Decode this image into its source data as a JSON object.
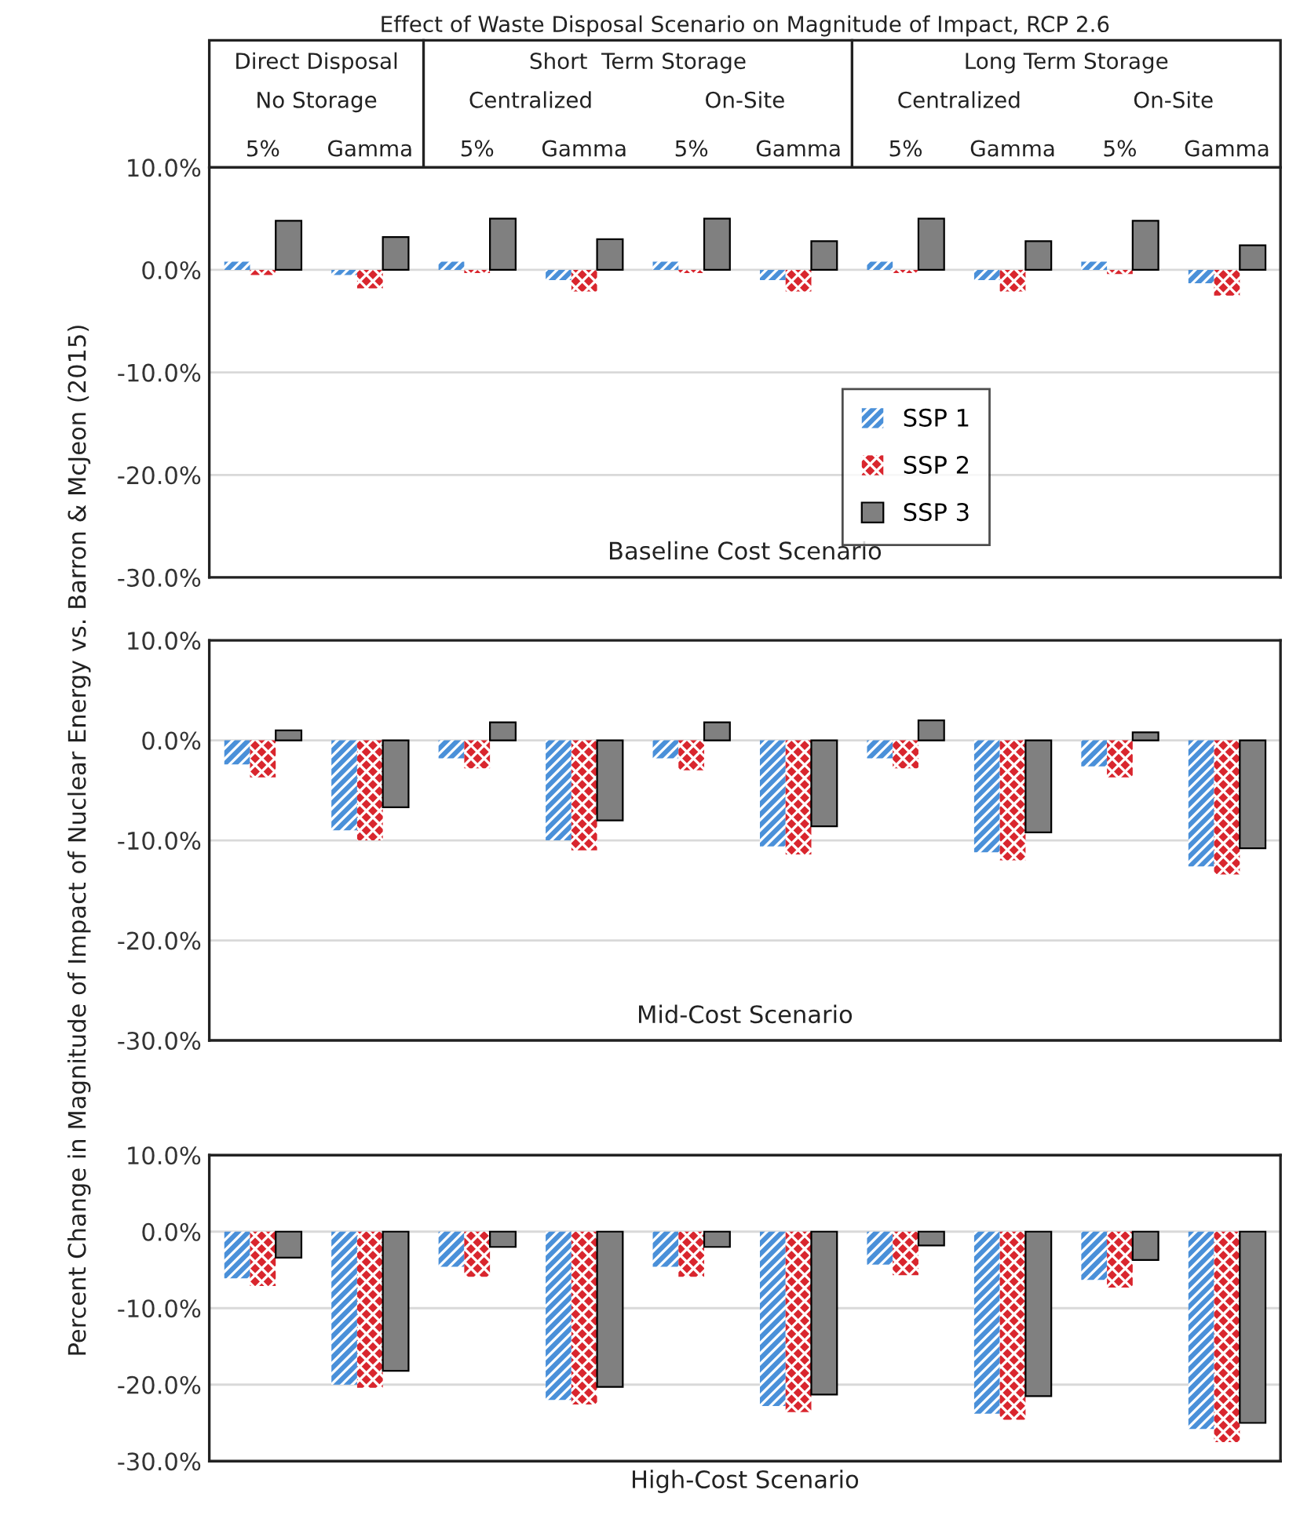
{
  "chart_data": [
    {
      "type": "bar",
      "title": "Effect of Waste Disposal Scenario on Magnitude of Impact, RCP 2.6",
      "categories": [
        "5%",
        "Gamma",
        "5%",
        "Gamma",
        "5%",
        "Gamma",
        "5%",
        "Gamma",
        "5%",
        "Gamma"
      ],
      "series": [
        {
          "name": "SSP 1",
          "color": "#4a90d9",
          "values": [
            0.8,
            -0.5,
            0.8,
            -1.0,
            0.8,
            -1.0,
            0.8,
            -1.0,
            0.8,
            -1.3
          ]
        },
        {
          "name": "SSP 2",
          "color": "#d9262e",
          "values": [
            -0.5,
            -1.8,
            -0.3,
            -2.1,
            -0.3,
            -2.1,
            -0.3,
            -2.1,
            -0.4,
            -2.5
          ]
        },
        {
          "name": "SSP 3",
          "color": "#808080",
          "values": [
            4.8,
            3.2,
            5.0,
            3.0,
            5.0,
            2.8,
            5.0,
            2.8,
            4.8,
            2.4
          ]
        }
      ],
      "annotations": [
        "Direct Disposal",
        "No Storage",
        "Short  Term Storage",
        "Centralized",
        "On-Site",
        "Long Term Storage",
        "Centralized",
        "On-Site",
        "Baseline Cost Scenario"
      ],
      "ylim": [
        -30,
        10
      ],
      "yticks": [
        {
          "value": -30,
          "label": "-30.0%"
        },
        {
          "value": -20,
          "label": "-20.0%"
        },
        {
          "value": -10,
          "label": "-10.0%"
        },
        {
          "value": 0,
          "label": "0.0%"
        },
        {
          "value": 10,
          "label": "10.0%"
        }
      ],
      "grid": "y",
      "legend": "right"
    },
    {
      "type": "bar",
      "categories": [
        null,
        null,
        null,
        null,
        null,
        null,
        null,
        null,
        null,
        null
      ],
      "series": [
        {
          "color": "#4a90d9",
          "values": [
            -2.4,
            -9.0,
            -1.8,
            -10.0,
            -1.8,
            -10.6,
            -1.8,
            -11.2,
            -2.6,
            -12.6
          ]
        },
        {
          "color": "#d9262e",
          "values": [
            -3.7,
            -10.0,
            -2.8,
            -11.0,
            -3.0,
            -11.4,
            -2.8,
            -12.0,
            -3.7,
            -13.4
          ]
        },
        {
          "color": "#808080",
          "values": [
            1.0,
            -6.7,
            1.8,
            -8.0,
            1.8,
            -8.6,
            2.0,
            -9.2,
            0.8,
            -10.8
          ]
        }
      ],
      "ylabel": "Percent Change in Magnitude of Impact of Nuclear Energy vs. Barron & McJeon (2015)",
      "annotations": [
        "Mid-Cost Scenario"
      ],
      "ylim": [
        -30,
        10
      ],
      "yticks": [
        {
          "value": -30,
          "label": "-30.0%"
        },
        {
          "value": -20,
          "label": "-20.0%"
        },
        {
          "value": -10,
          "label": "-10.0%"
        },
        {
          "value": 0,
          "label": "0.0%"
        },
        {
          "value": 10,
          "label": "10.0%"
        }
      ],
      "grid": "y",
      "tick_labels": "y"
    },
    {
      "type": "bar",
      "categories": [
        null,
        null,
        null,
        null,
        null,
        null,
        null,
        null,
        null,
        null
      ],
      "series": [
        {
          "color": "#4a90d9",
          "values": [
            -6.1,
            -20.0,
            -4.6,
            -22.0,
            -4.6,
            -22.8,
            -4.3,
            -23.8,
            -6.3,
            -25.8
          ]
        },
        {
          "color": "#d9262e",
          "values": [
            -7.1,
            -20.4,
            -5.9,
            -22.6,
            -5.9,
            -23.6,
            -5.7,
            -24.6,
            -7.3,
            -27.5
          ]
        },
        {
          "color": "#808080",
          "values": [
            -3.4,
            -18.2,
            -2.0,
            -20.3,
            -2.0,
            -21.3,
            -1.8,
            -21.5,
            -3.7,
            -25.0
          ]
        }
      ],
      "xlabel": "High-Cost Scenario",
      "ylim": [
        -30,
        10
      ],
      "yticks": [
        {
          "value": -30,
          "label": "-30.0%"
        },
        {
          "value": -20,
          "label": "-20.0%"
        },
        {
          "value": -10,
          "label": "-10.0%"
        },
        {
          "value": 0,
          "label": "0.0%"
        },
        {
          "value": 10,
          "label": "10.0%"
        }
      ],
      "grid": "y",
      "tick_labels": "y"
    }
  ]
}
